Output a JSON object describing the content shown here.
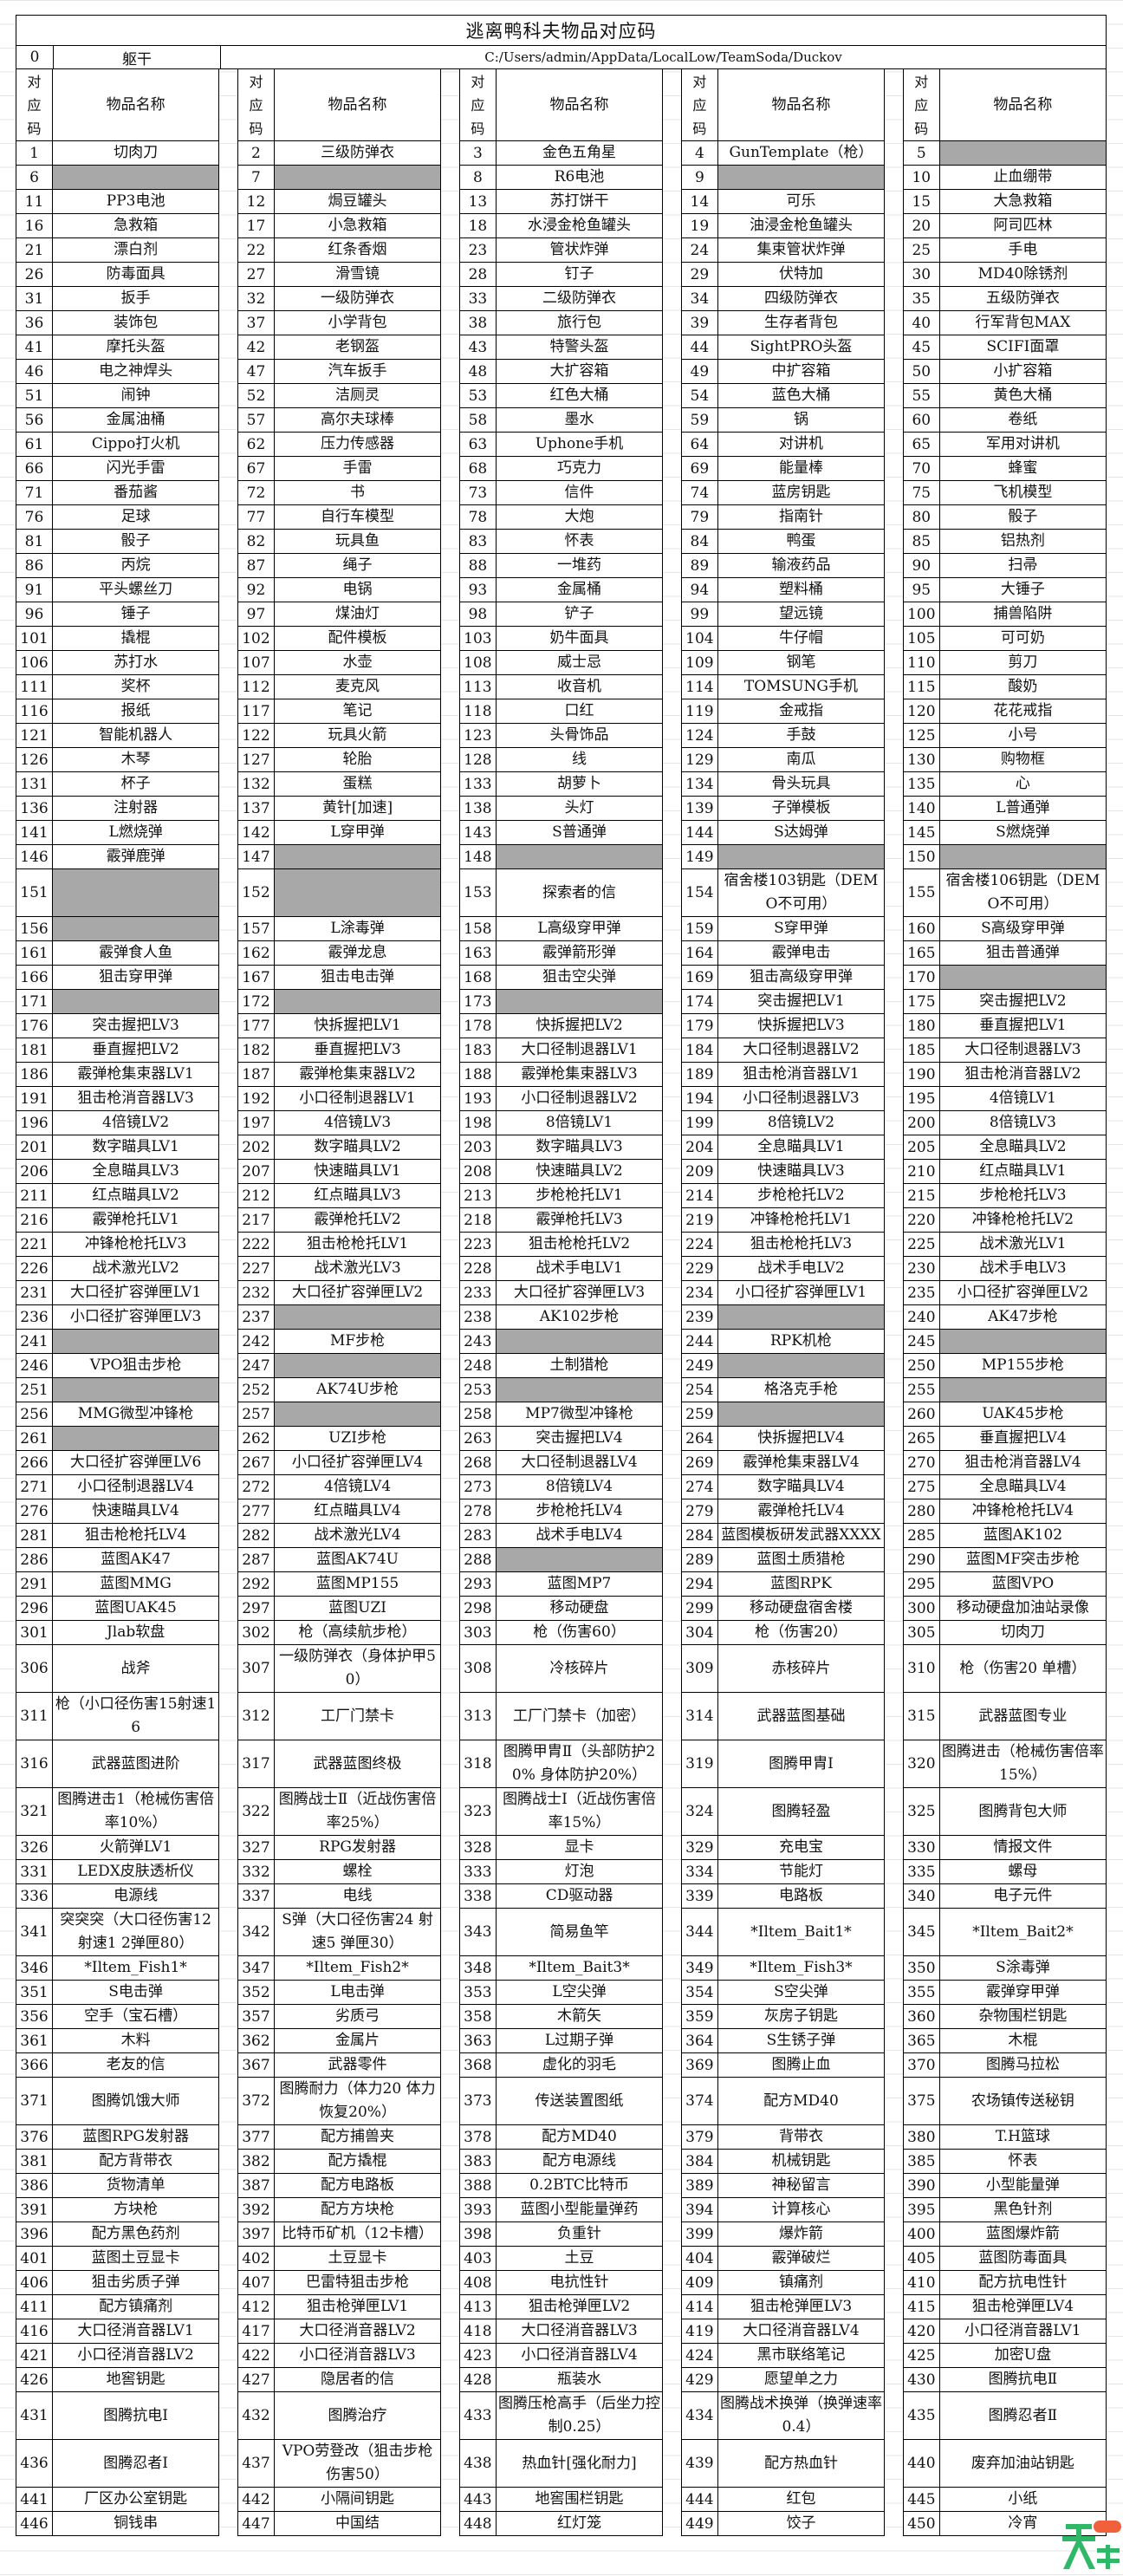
{
  "title": "逃离鸭科夫物品对应码",
  "zero_row": {
    "code": "0",
    "name": "躯干",
    "path": "C:/Users/admin/AppData/LocalLow/TeamSoda/Duckov"
  },
  "header": {
    "code_label": [
      "对",
      "应",
      "码"
    ],
    "name_label": "物品名称"
  },
  "empty_cell_color": "#a8a8a8",
  "watermark": {
    "logo": "天",
    "url": "www.TTzip.com",
    "text": "天下载"
  },
  "items": [
    [
      "1",
      "切肉刀"
    ],
    [
      "2",
      "三级防弹衣"
    ],
    [
      "3",
      "金色五角星"
    ],
    [
      "4",
      "GunTemplate（枪）"
    ],
    [
      "5",
      ""
    ],
    [
      "6",
      ""
    ],
    [
      "7",
      ""
    ],
    [
      "8",
      "R6电池"
    ],
    [
      "9",
      ""
    ],
    [
      "10",
      "止血绷带"
    ],
    [
      "11",
      "PP3电池"
    ],
    [
      "12",
      "焗豆罐头"
    ],
    [
      "13",
      "苏打饼干"
    ],
    [
      "14",
      "可乐"
    ],
    [
      "15",
      "大急救箱"
    ],
    [
      "16",
      "急救箱"
    ],
    [
      "17",
      "小急救箱"
    ],
    [
      "18",
      "水浸金枪鱼罐头"
    ],
    [
      "19",
      "油浸金枪鱼罐头"
    ],
    [
      "20",
      "阿司匹林"
    ],
    [
      "21",
      "漂白剂"
    ],
    [
      "22",
      "红条香烟"
    ],
    [
      "23",
      "管状炸弹"
    ],
    [
      "24",
      "集束管状炸弹"
    ],
    [
      "25",
      "手电"
    ],
    [
      "26",
      "防毒面具"
    ],
    [
      "27",
      "滑雪镜"
    ],
    [
      "28",
      "钉子"
    ],
    [
      "29",
      "伏特加"
    ],
    [
      "30",
      "MD40除锈剂"
    ],
    [
      "31",
      "扳手"
    ],
    [
      "32",
      "一级防弹衣"
    ],
    [
      "33",
      "二级防弹衣"
    ],
    [
      "34",
      "四级防弹衣"
    ],
    [
      "35",
      "五级防弹衣"
    ],
    [
      "36",
      "装饰包"
    ],
    [
      "37",
      "小学背包"
    ],
    [
      "38",
      "旅行包"
    ],
    [
      "39",
      "生存者背包"
    ],
    [
      "40",
      "行军背包MAX"
    ],
    [
      "41",
      "摩托头盔"
    ],
    [
      "42",
      "老钢盔"
    ],
    [
      "43",
      "特警头盔"
    ],
    [
      "44",
      "SightPRO头盔"
    ],
    [
      "45",
      "SCIFI面罩"
    ],
    [
      "46",
      "电之神焊头"
    ],
    [
      "47",
      "汽车扳手"
    ],
    [
      "48",
      "大扩容箱"
    ],
    [
      "49",
      "中扩容箱"
    ],
    [
      "50",
      "小扩容箱"
    ],
    [
      "51",
      "闹钟"
    ],
    [
      "52",
      "洁厕灵"
    ],
    [
      "53",
      "红色大桶"
    ],
    [
      "54",
      "蓝色大桶"
    ],
    [
      "55",
      "黄色大桶"
    ],
    [
      "56",
      "金属油桶"
    ],
    [
      "57",
      "高尔夫球棒"
    ],
    [
      "58",
      "墨水"
    ],
    [
      "59",
      "锅"
    ],
    [
      "60",
      "卷纸"
    ],
    [
      "61",
      "Cippo打火机"
    ],
    [
      "62",
      "压力传感器"
    ],
    [
      "63",
      "Uphone手机"
    ],
    [
      "64",
      "对讲机"
    ],
    [
      "65",
      "军用对讲机"
    ],
    [
      "66",
      "闪光手雷"
    ],
    [
      "67",
      "手雷"
    ],
    [
      "68",
      "巧克力"
    ],
    [
      "69",
      "能量棒"
    ],
    [
      "70",
      "蜂蜜"
    ],
    [
      "71",
      "番茄酱"
    ],
    [
      "72",
      "书"
    ],
    [
      "73",
      "信件"
    ],
    [
      "74",
      "蓝房钥匙"
    ],
    [
      "75",
      "飞机模型"
    ],
    [
      "76",
      "足球"
    ],
    [
      "77",
      "自行车模型"
    ],
    [
      "78",
      "大炮"
    ],
    [
      "79",
      "指南针"
    ],
    [
      "80",
      "骰子"
    ],
    [
      "81",
      "骰子"
    ],
    [
      "82",
      "玩具鱼"
    ],
    [
      "83",
      "怀表"
    ],
    [
      "84",
      "鸭蛋"
    ],
    [
      "85",
      "铝热剂"
    ],
    [
      "86",
      "丙烷"
    ],
    [
      "87",
      "绳子"
    ],
    [
      "88",
      "一堆药"
    ],
    [
      "89",
      "输液药品"
    ],
    [
      "90",
      "扫帚"
    ],
    [
      "91",
      "平头螺丝刀"
    ],
    [
      "92",
      "电锅"
    ],
    [
      "93",
      "金属桶"
    ],
    [
      "94",
      "塑料桶"
    ],
    [
      "95",
      "大锤子"
    ],
    [
      "96",
      "锤子"
    ],
    [
      "97",
      "煤油灯"
    ],
    [
      "98",
      "铲子"
    ],
    [
      "99",
      "望远镜"
    ],
    [
      "100",
      "捕兽陷阱"
    ],
    [
      "101",
      "撬棍"
    ],
    [
      "102",
      "配件模板"
    ],
    [
      "103",
      "奶牛面具"
    ],
    [
      "104",
      "牛仔帽"
    ],
    [
      "105",
      "可可奶"
    ],
    [
      "106",
      "苏打水"
    ],
    [
      "107",
      "水壶"
    ],
    [
      "108",
      "威士忌"
    ],
    [
      "109",
      "钢笔"
    ],
    [
      "110",
      "剪刀"
    ],
    [
      "111",
      "奖杯"
    ],
    [
      "112",
      "麦克风"
    ],
    [
      "113",
      "收音机"
    ],
    [
      "114",
      "TOMSUNG手机"
    ],
    [
      "115",
      "酸奶"
    ],
    [
      "116",
      "报纸"
    ],
    [
      "117",
      "笔记"
    ],
    [
      "118",
      "口红"
    ],
    [
      "119",
      "金戒指"
    ],
    [
      "120",
      "花花戒指"
    ],
    [
      "121",
      "智能机器人"
    ],
    [
      "122",
      "玩具火箭"
    ],
    [
      "123",
      "头骨饰品"
    ],
    [
      "124",
      "手鼓"
    ],
    [
      "125",
      "小号"
    ],
    [
      "126",
      "木琴"
    ],
    [
      "127",
      "轮胎"
    ],
    [
      "128",
      "线"
    ],
    [
      "129",
      "南瓜"
    ],
    [
      "130",
      "购物框"
    ],
    [
      "131",
      "杯子"
    ],
    [
      "132",
      "蛋糕"
    ],
    [
      "133",
      "胡萝卜"
    ],
    [
      "134",
      "骨头玩具"
    ],
    [
      "135",
      "心"
    ],
    [
      "136",
      "注射器"
    ],
    [
      "137",
      "黄针[加速]"
    ],
    [
      "138",
      "头灯"
    ],
    [
      "139",
      "子弹模板"
    ],
    [
      "140",
      "L普通弹"
    ],
    [
      "141",
      "L燃烧弹"
    ],
    [
      "142",
      "L穿甲弹"
    ],
    [
      "143",
      "S普通弹"
    ],
    [
      "144",
      "S达姆弹"
    ],
    [
      "145",
      "S燃烧弹"
    ],
    [
      "146",
      "霰弹鹿弹"
    ],
    [
      "147",
      ""
    ],
    [
      "148",
      ""
    ],
    [
      "149",
      ""
    ],
    [
      "150",
      ""
    ],
    [
      "151",
      ""
    ],
    [
      "152",
      ""
    ],
    [
      "153",
      "探索者的信"
    ],
    [
      "154",
      "宿舍楼103钥匙（DEMO不可用）"
    ],
    [
      "155",
      "宿舍楼106钥匙（DEMO不可用）"
    ],
    [
      "156",
      ""
    ],
    [
      "157",
      "L涂毒弹"
    ],
    [
      "158",
      "L高级穿甲弹"
    ],
    [
      "159",
      "S穿甲弹"
    ],
    [
      "160",
      "S高级穿甲弹"
    ],
    [
      "161",
      "霰弹食人鱼"
    ],
    [
      "162",
      "霰弹龙息"
    ],
    [
      "163",
      "霰弹箭形弹"
    ],
    [
      "164",
      "霰弹电击"
    ],
    [
      "165",
      "狙击普通弹"
    ],
    [
      "166",
      "狙击穿甲弹"
    ],
    [
      "167",
      "狙击电击弹"
    ],
    [
      "168",
      "狙击空尖弹"
    ],
    [
      "169",
      "狙击高级穿甲弹"
    ],
    [
      "170",
      ""
    ],
    [
      "171",
      ""
    ],
    [
      "172",
      ""
    ],
    [
      "173",
      ""
    ],
    [
      "174",
      "突击握把LV1"
    ],
    [
      "175",
      "突击握把LV2"
    ],
    [
      "176",
      "突击握把LV3"
    ],
    [
      "177",
      "快拆握把LV1"
    ],
    [
      "178",
      "快拆握把LV2"
    ],
    [
      "179",
      "快拆握把LV3"
    ],
    [
      "180",
      "垂直握把LV1"
    ],
    [
      "181",
      "垂直握把LV2"
    ],
    [
      "182",
      "垂直握把LV3"
    ],
    [
      "183",
      "大口径制退器LV1"
    ],
    [
      "184",
      "大口径制退器LV2"
    ],
    [
      "185",
      "大口径制退器LV3"
    ],
    [
      "186",
      "霰弹枪集束器LV1"
    ],
    [
      "187",
      "霰弹枪集束器LV2"
    ],
    [
      "188",
      "霰弹枪集束器LV3"
    ],
    [
      "189",
      "狙击枪消音器LV1"
    ],
    [
      "190",
      "狙击枪消音器LV2"
    ],
    [
      "191",
      "狙击枪消音器LV3"
    ],
    [
      "192",
      "小口径制退器LV1"
    ],
    [
      "193",
      "小口径制退器LV2"
    ],
    [
      "194",
      "小口径制退器LV3"
    ],
    [
      "195",
      "4倍镜LV1"
    ],
    [
      "196",
      "4倍镜LV2"
    ],
    [
      "197",
      "4倍镜LV3"
    ],
    [
      "198",
      "8倍镜LV1"
    ],
    [
      "199",
      "8倍镜LV2"
    ],
    [
      "200",
      "8倍镜LV3"
    ],
    [
      "201",
      "数字瞄具LV1"
    ],
    [
      "202",
      "数字瞄具LV2"
    ],
    [
      "203",
      "数字瞄具LV3"
    ],
    [
      "204",
      "全息瞄具LV1"
    ],
    [
      "205",
      "全息瞄具LV2"
    ],
    [
      "206",
      "全息瞄具LV3"
    ],
    [
      "207",
      "快速瞄具LV1"
    ],
    [
      "208",
      "快速瞄具LV2"
    ],
    [
      "209",
      "快速瞄具LV3"
    ],
    [
      "210",
      "红点瞄具LV1"
    ],
    [
      "211",
      "红点瞄具LV2"
    ],
    [
      "212",
      "红点瞄具LV3"
    ],
    [
      "213",
      "步枪枪托LV1"
    ],
    [
      "214",
      "步枪枪托LV2"
    ],
    [
      "215",
      "步枪枪托LV3"
    ],
    [
      "216",
      "霰弹枪托LV1"
    ],
    [
      "217",
      "霰弹枪托LV2"
    ],
    [
      "218",
      "霰弹枪托LV3"
    ],
    [
      "219",
      "冲锋枪枪托LV1"
    ],
    [
      "220",
      "冲锋枪枪托LV2"
    ],
    [
      "221",
      "冲锋枪枪托LV3"
    ],
    [
      "222",
      "狙击枪枪托LV1"
    ],
    [
      "223",
      "狙击枪枪托LV2"
    ],
    [
      "224",
      "狙击枪枪托LV3"
    ],
    [
      "225",
      "战术激光LV1"
    ],
    [
      "226",
      "战术激光LV2"
    ],
    [
      "227",
      "战术激光LV3"
    ],
    [
      "228",
      "战术手电LV1"
    ],
    [
      "229",
      "战术手电LV2"
    ],
    [
      "230",
      "战术手电LV3"
    ],
    [
      "231",
      "大口径扩容弹匣LV1"
    ],
    [
      "232",
      "大口径扩容弹匣LV2"
    ],
    [
      "233",
      "大口径扩容弹匣LV3"
    ],
    [
      "234",
      "小口径扩容弹匣LV1"
    ],
    [
      "235",
      "小口径扩容弹匣LV2"
    ],
    [
      "236",
      "小口径扩容弹匣LV3"
    ],
    [
      "237",
      ""
    ],
    [
      "238",
      "AK102步枪"
    ],
    [
      "239",
      ""
    ],
    [
      "240",
      "AK47步枪"
    ],
    [
      "241",
      ""
    ],
    [
      "242",
      "MF步枪"
    ],
    [
      "243",
      ""
    ],
    [
      "244",
      "RPK机枪"
    ],
    [
      "245",
      ""
    ],
    [
      "246",
      "VPO狙击步枪"
    ],
    [
      "247",
      ""
    ],
    [
      "248",
      "土制猎枪"
    ],
    [
      "249",
      ""
    ],
    [
      "250",
      "MP155步枪"
    ],
    [
      "251",
      ""
    ],
    [
      "252",
      "AK74U步枪"
    ],
    [
      "253",
      ""
    ],
    [
      "254",
      "格洛克手枪"
    ],
    [
      "255",
      ""
    ],
    [
      "256",
      "MMG微型冲锋枪"
    ],
    [
      "257",
      ""
    ],
    [
      "258",
      "MP7微型冲锋枪"
    ],
    [
      "259",
      ""
    ],
    [
      "260",
      "UAK45步枪"
    ],
    [
      "261",
      ""
    ],
    [
      "262",
      "UZI步枪"
    ],
    [
      "263",
      "突击握把LV4"
    ],
    [
      "264",
      "快拆握把LV4"
    ],
    [
      "265",
      "垂直握把LV4"
    ],
    [
      "266",
      "大口径扩容弹匣LV6"
    ],
    [
      "267",
      "小口径扩容弹匣LV4"
    ],
    [
      "268",
      "大口径制退器LV4"
    ],
    [
      "269",
      "霰弹枪集束器LV4"
    ],
    [
      "270",
      "狙击枪消音器LV4"
    ],
    [
      "271",
      "小口径制退器LV4"
    ],
    [
      "272",
      "4倍镜LV4"
    ],
    [
      "273",
      "8倍镜LV4"
    ],
    [
      "274",
      "数字瞄具LV4"
    ],
    [
      "275",
      "全息瞄具LV4"
    ],
    [
      "276",
      "快速瞄具LV4"
    ],
    [
      "277",
      "红点瞄具LV4"
    ],
    [
      "278",
      "步枪枪托LV4"
    ],
    [
      "279",
      "霰弹枪托LV4"
    ],
    [
      "280",
      "冲锋枪枪托LV4"
    ],
    [
      "281",
      "狙击枪枪托LV4"
    ],
    [
      "282",
      "战术激光LV4"
    ],
    [
      "283",
      "战术手电LV4"
    ],
    [
      "284",
      "蓝图模板研发武器XXXX"
    ],
    [
      "285",
      "蓝图AK102"
    ],
    [
      "286",
      "蓝图AK47"
    ],
    [
      "287",
      "蓝图AK74U"
    ],
    [
      "288",
      ""
    ],
    [
      "289",
      "蓝图土质猎枪"
    ],
    [
      "290",
      "蓝图MF突击步枪"
    ],
    [
      "291",
      "蓝图MMG"
    ],
    [
      "292",
      "蓝图MP155"
    ],
    [
      "293",
      "蓝图MP7"
    ],
    [
      "294",
      "蓝图RPK"
    ],
    [
      "295",
      "蓝图VPO"
    ],
    [
      "296",
      "蓝图UAK45"
    ],
    [
      "297",
      "蓝图UZI"
    ],
    [
      "298",
      "移动硬盘"
    ],
    [
      "299",
      "移动硬盘宿舍楼"
    ],
    [
      "300",
      "移动硬盘加油站录像"
    ],
    [
      "301",
      "Jlab软盘"
    ],
    [
      "302",
      "枪（高续航步枪）"
    ],
    [
      "303",
      "枪（伤害60）"
    ],
    [
      "304",
      "枪（伤害20）"
    ],
    [
      "305",
      "切肉刀"
    ],
    [
      "306",
      "战斧"
    ],
    [
      "307",
      "一级防弹衣（身体护甲50）"
    ],
    [
      "308",
      "冷核碎片"
    ],
    [
      "309",
      "赤核碎片"
    ],
    [
      "310",
      "枪（伤害20 单槽）"
    ],
    [
      "311",
      "枪（小口径伤害15射速16"
    ],
    [
      "312",
      "工厂门禁卡"
    ],
    [
      "313",
      "工厂门禁卡（加密）"
    ],
    [
      "314",
      "武器蓝图基础"
    ],
    [
      "315",
      "武器蓝图专业"
    ],
    [
      "316",
      "武器蓝图进阶"
    ],
    [
      "317",
      "武器蓝图终极"
    ],
    [
      "318",
      "图腾甲胄Ⅱ（头部防护20% 身体防护20%）"
    ],
    [
      "319",
      "图腾甲胄Ⅰ"
    ],
    [
      "320",
      "图腾进击（枪械伤害倍率15%）"
    ],
    [
      "321",
      "图腾进击1（枪械伤害倍率10%）"
    ],
    [
      "322",
      "图腾战士Ⅱ（近战伤害倍率25%）"
    ],
    [
      "323",
      "图腾战士Ⅰ（近战伤害倍率15%）"
    ],
    [
      "324",
      "图腾轻盈"
    ],
    [
      "325",
      "图腾背包大师"
    ],
    [
      "326",
      "火箭弹LV1"
    ],
    [
      "327",
      "RPG发射器"
    ],
    [
      "328",
      "显卡"
    ],
    [
      "329",
      "充电宝"
    ],
    [
      "330",
      "情报文件"
    ],
    [
      "331",
      "LEDX皮肤透析仪"
    ],
    [
      "332",
      "螺栓"
    ],
    [
      "333",
      "灯泡"
    ],
    [
      "334",
      "节能灯"
    ],
    [
      "335",
      "螺母"
    ],
    [
      "336",
      "电源线"
    ],
    [
      "337",
      "电线"
    ],
    [
      "338",
      "CD驱动器"
    ],
    [
      "339",
      "电路板"
    ],
    [
      "340",
      "电子元件"
    ],
    [
      "341",
      "突突突（大口径伤害12 射速1 2弹匣80）"
    ],
    [
      "342",
      "S弹（大口径伤害24 射速5 弹匣30）"
    ],
    [
      "343",
      "简易鱼竿"
    ],
    [
      "344",
      "*Iltem_Bait1*"
    ],
    [
      "345",
      "*Iltem_Bait2*"
    ],
    [
      "346",
      "*Iltem_Fish1*"
    ],
    [
      "347",
      "*Iltem_Fish2*"
    ],
    [
      "348",
      "*Iltem_Bait3*"
    ],
    [
      "349",
      "*Iltem_Fish3*"
    ],
    [
      "350",
      "S涂毒弹"
    ],
    [
      "351",
      "S电击弹"
    ],
    [
      "352",
      "L电击弹"
    ],
    [
      "353",
      "L空尖弹"
    ],
    [
      "354",
      "S空尖弹"
    ],
    [
      "355",
      "霰弹穿甲弹"
    ],
    [
      "356",
      "空手（宝石槽）"
    ],
    [
      "357",
      "劣质弓"
    ],
    [
      "358",
      "木箭矢"
    ],
    [
      "359",
      "灰房子钥匙"
    ],
    [
      "360",
      "杂物围栏钥匙"
    ],
    [
      "361",
      "木料"
    ],
    [
      "362",
      "金属片"
    ],
    [
      "363",
      "L过期子弹"
    ],
    [
      "364",
      "S生锈子弹"
    ],
    [
      "365",
      "木棍"
    ],
    [
      "366",
      "老友的信"
    ],
    [
      "367",
      "武器零件"
    ],
    [
      "368",
      "虚化的羽毛"
    ],
    [
      "369",
      "图腾止血"
    ],
    [
      "370",
      "图腾马拉松"
    ],
    [
      "371",
      "图腾饥饿大师"
    ],
    [
      "372",
      "图腾耐力（体力20 体力恢复20%）"
    ],
    [
      "373",
      "传送装置图纸"
    ],
    [
      "374",
      "配方MD40"
    ],
    [
      "375",
      "农场镇传送秘钥"
    ],
    [
      "376",
      "蓝图RPG发射器"
    ],
    [
      "377",
      "配方捕兽夹"
    ],
    [
      "378",
      "配方MD40"
    ],
    [
      "379",
      "背带衣"
    ],
    [
      "380",
      "T.H篮球"
    ],
    [
      "381",
      "配方背带衣"
    ],
    [
      "382",
      "配方撬棍"
    ],
    [
      "383",
      "配方电源线"
    ],
    [
      "384",
      "机械钥匙"
    ],
    [
      "385",
      "怀表"
    ],
    [
      "386",
      "货物清单"
    ],
    [
      "387",
      "配方电路板"
    ],
    [
      "388",
      "0.2BTC比特币"
    ],
    [
      "389",
      "神秘留言"
    ],
    [
      "390",
      "小型能量弹"
    ],
    [
      "391",
      "方块枪"
    ],
    [
      "392",
      "配方方块枪"
    ],
    [
      "393",
      "蓝图小型能量弹药"
    ],
    [
      "394",
      "计算核心"
    ],
    [
      "395",
      "黑色针剂"
    ],
    [
      "396",
      "配方黑色药剂"
    ],
    [
      "397",
      "比特币矿机（12卡槽）"
    ],
    [
      "398",
      "负重针"
    ],
    [
      "399",
      "爆炸箭"
    ],
    [
      "400",
      "蓝图爆炸箭"
    ],
    [
      "401",
      "蓝图土豆显卡"
    ],
    [
      "402",
      "土豆显卡"
    ],
    [
      "403",
      "土豆"
    ],
    [
      "404",
      "霰弹破烂"
    ],
    [
      "405",
      "蓝图防毒面具"
    ],
    [
      "406",
      "狙击劣质子弹"
    ],
    [
      "407",
      "巴雷特狙击步枪"
    ],
    [
      "408",
      "电抗性针"
    ],
    [
      "409",
      "镇痛剂"
    ],
    [
      "410",
      "配方抗电性针"
    ],
    [
      "411",
      "配方镇痛剂"
    ],
    [
      "412",
      "狙击枪弹匣LV1"
    ],
    [
      "413",
      "狙击枪弹匣LV2"
    ],
    [
      "414",
      "狙击枪弹匣LV3"
    ],
    [
      "415",
      "狙击枪弹匣LV4"
    ],
    [
      "416",
      "大口径消音器LV1"
    ],
    [
      "417",
      "大口径消音器LV2"
    ],
    [
      "418",
      "大口径消音器LV3"
    ],
    [
      "419",
      "大口径消音器LV4"
    ],
    [
      "420",
      "小口径消音器LV1"
    ],
    [
      "421",
      "小口径消音器LV2"
    ],
    [
      "422",
      "小口径消音器LV3"
    ],
    [
      "423",
      "小口径消音器LV4"
    ],
    [
      "424",
      "黑市联络笔记"
    ],
    [
      "425",
      "加密U盘"
    ],
    [
      "426",
      "地窖钥匙"
    ],
    [
      "427",
      "隐居者的信"
    ],
    [
      "428",
      "瓶装水"
    ],
    [
      "429",
      "愿望单之力"
    ],
    [
      "430",
      "图腾抗电Ⅱ"
    ],
    [
      "431",
      "图腾抗电Ⅰ"
    ],
    [
      "432",
      "图腾治疗"
    ],
    [
      "433",
      "图腾压枪高手（后坐力控制0.25）"
    ],
    [
      "434",
      "图腾战术换弹（换弹速率0.4）"
    ],
    [
      "435",
      "图腾忍者Ⅱ"
    ],
    [
      "436",
      "图腾忍者Ⅰ"
    ],
    [
      "437",
      "VPO劳登改（狙击步枪伤害50）"
    ],
    [
      "438",
      "热血针[强化耐力]"
    ],
    [
      "439",
      "配方热血针"
    ],
    [
      "440",
      "废弃加油站钥匙"
    ],
    [
      "441",
      "厂区办公室钥匙"
    ],
    [
      "442",
      "小隔间钥匙"
    ],
    [
      "443",
      "地窖围栏钥匙"
    ],
    [
      "444",
      "红包"
    ],
    [
      "445",
      "小纸"
    ],
    [
      "446",
      "铜钱串"
    ],
    [
      "447",
      "中国结"
    ],
    [
      "448",
      "红灯笼"
    ],
    [
      "449",
      "饺子"
    ],
    [
      "450",
      "冷宵"
    ]
  ]
}
